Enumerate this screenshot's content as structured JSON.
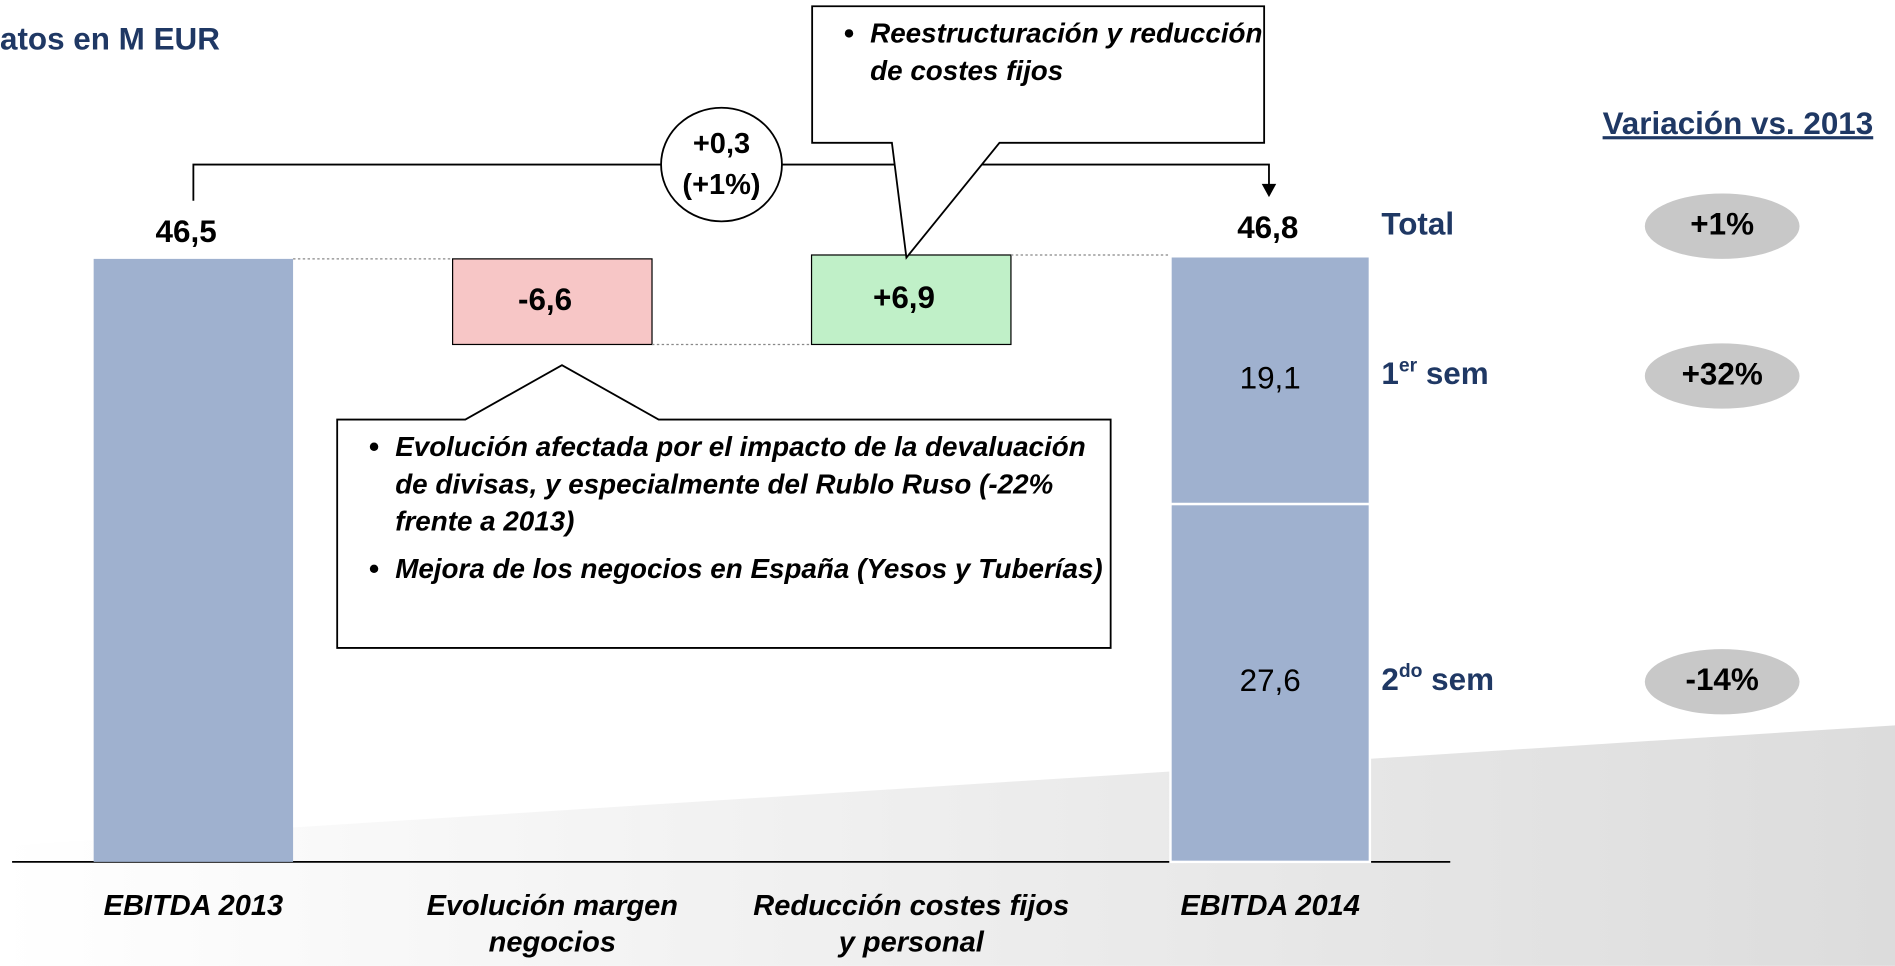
{
  "chart_data": {
    "type": "waterfall",
    "subtitle": "atos en M EUR",
    "categories": [
      "EBITDA 2013",
      "Evolución margen negocios",
      "Reducción costes fijos y personal",
      "EBITDA 2014"
    ],
    "values": [
      46.5,
      -6.6,
      6.9,
      46.8
    ],
    "value_labels": [
      "46,5",
      "-6,6",
      "+6,9",
      "46,8"
    ],
    "colors": [
      "#9fb1cf",
      "#f7c6c6",
      "#c0f0c8",
      "#9fb1cf"
    ],
    "ylim": [
      0,
      50
    ],
    "segments": [
      {
        "name_parts": [
          "2",
          "do",
          " sem"
        ],
        "value": 27.6,
        "value_label": "27,6",
        "variation": "-14%"
      },
      {
        "name_parts": [
          "1",
          "er",
          " sem"
        ],
        "value": 19.1,
        "value_label": "19,1",
        "variation": "+32%"
      }
    ],
    "total": {
      "name": "Total",
      "variation": "+1%"
    },
    "variation_title": "Variación vs. 2013",
    "change": {
      "value": 0.3,
      "label": "+0,3",
      "pct_label": "(+1%)"
    },
    "callouts": [
      {
        "items": [
          "Reestructuración y reducción de costes fijos"
        ]
      },
      {
        "items": [
          "Evolución afectada por el impacto de la devaluación de divisas, y especialmente del Rublo Ruso (-22% frente a 2013)",
          "Mejora de los negocios en España (Yesos y Tuberías)"
        ]
      }
    ]
  }
}
